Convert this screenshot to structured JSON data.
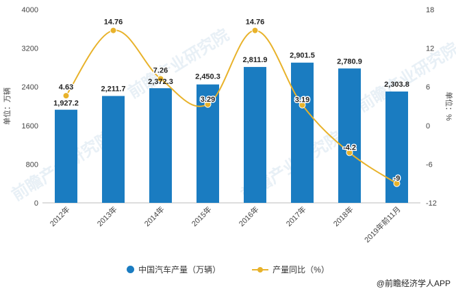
{
  "chart_data": {
    "type": "bar+line",
    "categories": [
      "2012年",
      "2013年",
      "2014年",
      "2015年",
      "2016年",
      "2017年",
      "2018年",
      "2019年前11月"
    ],
    "series": [
      {
        "name": "中国汽车产量（万辆）",
        "type": "bar",
        "axis": "left",
        "color": "#1a7cc1",
        "values": [
          1927.2,
          2211.7,
          2372.3,
          2450.3,
          2811.9,
          2901.5,
          2780.9,
          2303.8
        ],
        "labels": [
          "1,927.2",
          "2,211.7",
          "2,372.3",
          "2,450.3",
          "2,811.9",
          "2,901.5",
          "2,780.9",
          "2,303.8"
        ]
      },
      {
        "name": "产量同比（%）",
        "type": "line",
        "axis": "right",
        "color": "#e8b22a",
        "values": [
          4.63,
          14.76,
          7.26,
          3.29,
          14.76,
          3.19,
          -4.2,
          -9
        ],
        "labels": [
          "4.63",
          "14.76",
          "7.26",
          "3.29",
          "14.76",
          "3.19",
          "-4.2",
          "-9"
        ]
      }
    ],
    "y_left": {
      "label": "单位：万辆",
      "min": 0,
      "max": 4000,
      "ticks": [
        "0",
        "800",
        "1600",
        "2400",
        "3200",
        "4000"
      ]
    },
    "y_right": {
      "label": "单位：%",
      "min": -12,
      "max": 18,
      "ticks": [
        "-12",
        "-6",
        "0",
        "6",
        "12",
        "18"
      ]
    },
    "legend": [
      "中国汽车产量（万辆）",
      "产量同比（%）"
    ],
    "source": "@前瞻经济学人APP",
    "watermark": "前瞻产业研究院"
  }
}
